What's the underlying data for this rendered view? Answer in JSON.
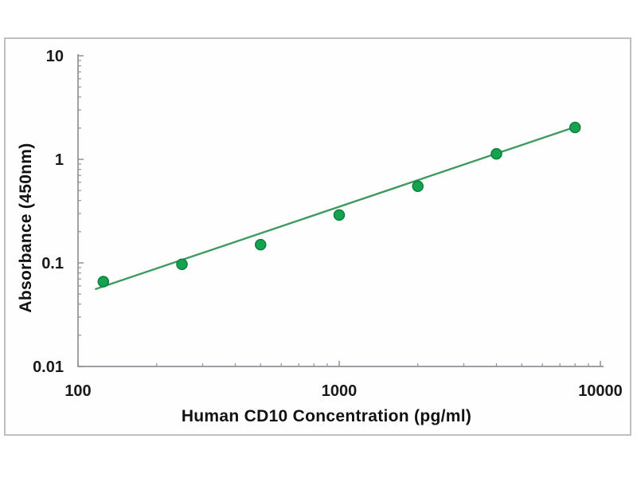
{
  "chart_data": {
    "type": "scatter",
    "title": "",
    "xlabel": "Human CD10 Concentration (pg/ml)",
    "ylabel": "Absorbance (450nm)",
    "x_scale": "log",
    "y_scale": "log",
    "xlim": [
      100,
      10000
    ],
    "ylim": [
      0.01,
      10
    ],
    "grid": false,
    "legend": "none",
    "x_ticks": {
      "major": [
        100,
        1000,
        10000
      ],
      "labels": [
        "100",
        "1000",
        "10000"
      ]
    },
    "y_ticks": {
      "major": [
        10,
        1,
        0.1,
        0.01
      ],
      "labels": [
        "10",
        "1",
        "0.1",
        "0.01"
      ]
    },
    "points": {
      "x": [
        125,
        250,
        500,
        1000,
        2000,
        4000,
        8000
      ],
      "y": [
        0.066,
        0.097,
        0.15,
        0.29,
        0.55,
        1.13,
        2.03
      ]
    },
    "trendline": {
      "x": [
        117,
        7990
      ],
      "y": [
        0.056,
        2.05
      ]
    },
    "colors": {
      "marker": "#16a351",
      "marker_edge": "#0c7e3d",
      "line": "#3f9a62",
      "axis": "#8e9296",
      "text": "#1a1a1a",
      "frame": "#bcc0c4"
    }
  }
}
